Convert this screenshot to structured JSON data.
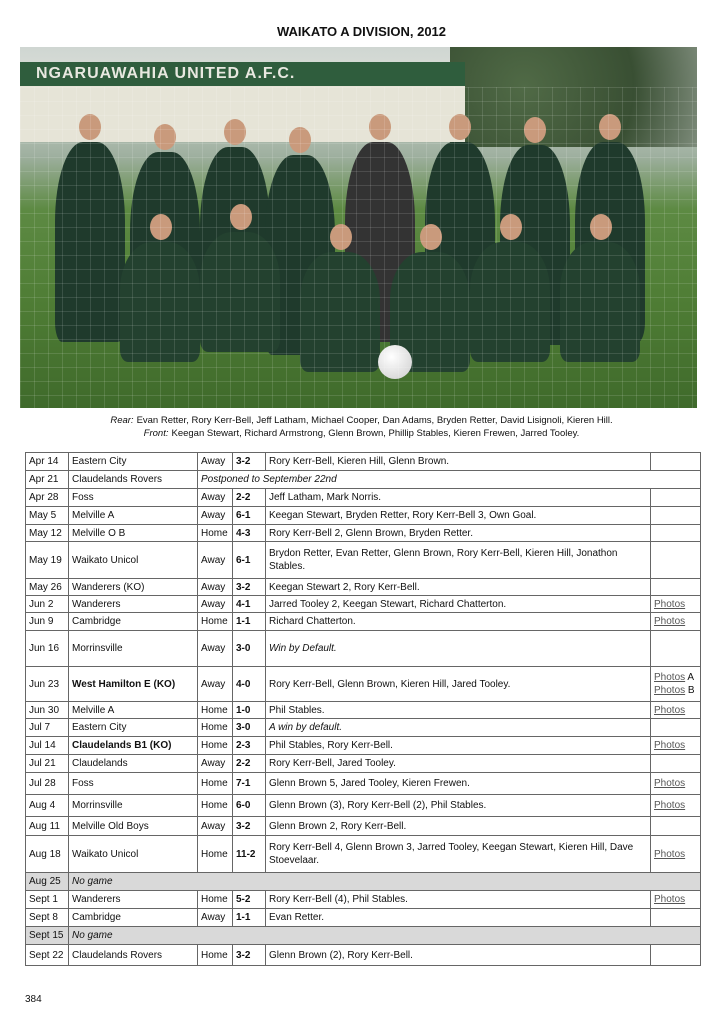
{
  "title": "WAIKATO A DIVISION,  2012",
  "photo": {
    "club_sign": "NGARUAWAHIA UNITED A.F.C."
  },
  "caption": {
    "rear_label": "Rear:",
    "rear": "Evan Retter,  Rory Kerr-Bell,  Jeff Latham,  Michael Cooper,  Dan Adams,  Bryden Retter,  David Lisignoli,  Kieren Hill.",
    "front_label": "Front:",
    "front": "Keegan Stewart,  Richard Armstrong,  Glenn Brown,  Phillip Stables,  Kieren Frewen,  Jarred Tooley."
  },
  "results": [
    {
      "date": "Apr 14",
      "opponent": "Eastern City",
      "venue": "Away",
      "score": "3-2",
      "scorers": "Rory Kerr-Bell, Kieren Hill, Glenn Brown.",
      "photos": []
    },
    {
      "date": "Apr 21",
      "opponent": "Claudelands Rovers",
      "note": "Postponed to September 22nd"
    },
    {
      "date": "Apr 28",
      "opponent": "Foss",
      "venue": "Away",
      "score": "2-2",
      "scorers": "Jeff Latham, Mark Norris.",
      "photos": []
    },
    {
      "date": "May 5",
      "opponent": "Melville A",
      "venue": "Away",
      "score": "6-1",
      "scorers": "Keegan Stewart, Bryden Retter, Rory Kerr-Bell 3, Own Goal.",
      "photos": []
    },
    {
      "date": "May 12",
      "opponent": "Melville O B",
      "venue": "Home",
      "score": "4-3",
      "scorers": "Rory Kerr-Bell 2, Glenn Brown, Bryden Retter.",
      "photos": []
    },
    {
      "date": "May 19",
      "opponent": "Waikato Unicol",
      "venue": "Away",
      "score": "6-1",
      "scorers": "Brydon Retter, Evan Retter, Glenn Brown, Rory Kerr-Bell, Kieren Hill, Jonathon Stables.",
      "photos": []
    },
    {
      "date": "May 26",
      "opponent": "Wanderers (KO)",
      "venue": "Away",
      "score": "3-2",
      "scorers": "Keegan Stewart 2, Rory Kerr-Bell.",
      "photos": []
    },
    {
      "date": "Jun 2",
      "opponent": "Wanderers",
      "venue": "Away",
      "score": "4-1",
      "scorers": "Jarred Tooley 2, Keegan Stewart, Richard Chatterton.",
      "photos": [
        "Photos"
      ]
    },
    {
      "date": "Jun 9",
      "opponent": "Cambridge",
      "venue": "Home",
      "score": "1-1",
      "scorers": "Richard Chatterton.",
      "photos": [
        "Photos"
      ]
    },
    {
      "date": "Jun 16",
      "opponent": "Morrinsville",
      "venue": "Away",
      "score": "3-0",
      "scorers": "Win by Default.",
      "italic": true,
      "photos": []
    },
    {
      "date": "Jun 23",
      "opponent": "West Hamilton E (KO)",
      "bold": true,
      "venue": "Away",
      "score": "4-0",
      "scorers": "Rory Kerr-Bell, Glenn Brown, Kieren Hill, Jared Tooley.",
      "photos": [
        "Photos A",
        "Photos B"
      ]
    },
    {
      "date": "Jun 30",
      "opponent": "Melville A",
      "venue": "Home",
      "score": "1-0",
      "scorers": "Phil Stables.",
      "photos": [
        "Photos"
      ]
    },
    {
      "date": "Jul 7",
      "opponent": "Eastern City",
      "venue": "Home",
      "score": "3-0",
      "scorers": "A win by default.",
      "italic": true,
      "photos": []
    },
    {
      "date": "Jul 14",
      "opponent": "Claudelands B1 (KO)",
      "bold": true,
      "venue": "Home",
      "score": "2-3",
      "scorers": "Phil Stables, Rory Kerr-Bell.",
      "photos": [
        "Photos"
      ]
    },
    {
      "date": "Jul 21",
      "opponent": "Claudelands",
      "venue": "Away",
      "score": "2-2",
      "scorers": "Rory Kerr-Bell, Jared Tooley.",
      "photos": []
    },
    {
      "date": "Jul 28",
      "opponent": "Foss",
      "venue": "Home",
      "score": "7-1",
      "scorers": "Glenn Brown 5, Jared Tooley, Kieren Frewen.",
      "photos": [
        "Photos"
      ]
    },
    {
      "date": "Aug 4",
      "opponent": "Morrinsville",
      "venue": "Home",
      "score": "6-0",
      "scorers": "Glenn Brown (3), Rory Kerr-Bell (2), Phil Stables.",
      "photos": [
        "Photos"
      ]
    },
    {
      "date": "Aug 11",
      "opponent": "Melville Old Boys",
      "venue": "Away",
      "score": "3-2",
      "scorers": "Glenn Brown 2, Rory Kerr-Bell.",
      "photos": []
    },
    {
      "date": "Aug 18",
      "opponent": "Waikato Unicol",
      "venue": "Home",
      "score": "11-2",
      "scorers": "Rory Kerr-Bell 4, Glenn Brown 3, Jarred Tooley, Keegan Stewart, Kieren Hill, Dave Stoevelaar.",
      "photos": [
        "Photos"
      ]
    },
    {
      "date": "Aug 25",
      "nogame": "No game"
    },
    {
      "date": "Sept 1",
      "opponent": "Wanderers",
      "venue": "Home",
      "score": "5-2",
      "scorers": "Rory Kerr-Bell (4), Phil Stables.",
      "photos": [
        "Photos"
      ]
    },
    {
      "date": "Sept 8",
      "opponent": "Cambridge",
      "venue": "Away",
      "score": "1-1",
      "scorers": "Evan Retter.",
      "photos": []
    },
    {
      "date": "Sept 15",
      "nogame": "No game"
    },
    {
      "date": "Sept 22",
      "opponent": "Claudelands Rovers",
      "venue": "Home",
      "score": "3-2",
      "scorers": "Glenn Brown (2), Rory Kerr-Bell.",
      "photos": []
    }
  ],
  "page_number": "384"
}
